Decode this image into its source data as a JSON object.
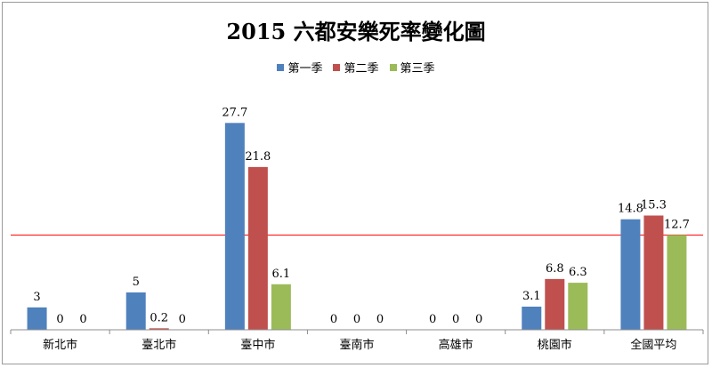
{
  "chart_data": {
    "type": "bar",
    "title": "2015 六都安樂死率變化圖",
    "categories": [
      "新北市",
      "臺北市",
      "臺中市",
      "臺南市",
      "高雄市",
      "桃園市",
      "全國平均"
    ],
    "series": [
      {
        "name": "第一季",
        "color": "#4f81bd",
        "values": [
          3,
          5,
          27.7,
          0,
          0,
          3.1,
          14.8
        ]
      },
      {
        "name": "第二季",
        "color": "#c0504d",
        "values": [
          0,
          0.2,
          21.8,
          0,
          0,
          6.8,
          15.3
        ]
      },
      {
        "name": "第三季",
        "color": "#9bbb59",
        "values": [
          0,
          0,
          6.1,
          0,
          0,
          6.3,
          12.7
        ]
      }
    ],
    "value_labels": [
      [
        "3",
        "5",
        "27.7",
        "0",
        "0",
        "3.1",
        "14.8"
      ],
      [
        "0",
        "0.2",
        "21.8",
        "0",
        "0",
        "6.8",
        "15.3"
      ],
      [
        "0",
        "0",
        "6.1",
        "0",
        "0",
        "6.3",
        "12.7"
      ]
    ],
    "reference_line": {
      "value": 12.7,
      "color": "#ff0000"
    },
    "ylim": [
      0,
      30
    ],
    "legend_position": "top-center",
    "grid": false,
    "xlabel": "",
    "ylabel": ""
  }
}
